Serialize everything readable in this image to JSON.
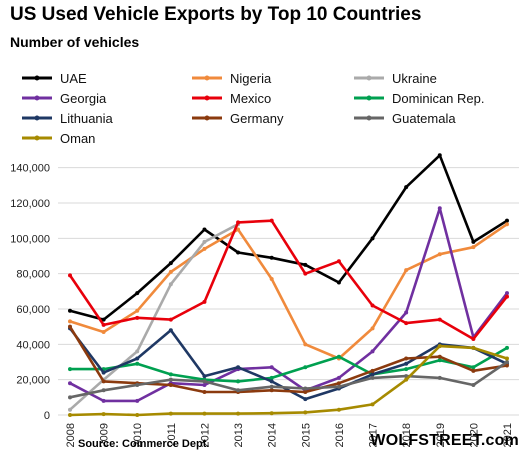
{
  "header": {
    "title": "US Used Vehicle Exports by Top 10 Countries",
    "subtitle": "Number of vehicles"
  },
  "footer": {
    "source": "Source: Commerce Dept.",
    "brand": "WOLFSTREET.com"
  },
  "chart_data": {
    "type": "line",
    "title": "US Used Vehicle Exports by Top 10 Countries",
    "ylabel": "Number of vehicles",
    "xlabel": "",
    "ylim": [
      0,
      150000
    ],
    "yticks": [
      0,
      20000,
      40000,
      60000,
      80000,
      100000,
      120000,
      140000
    ],
    "ytick_labels": [
      "0",
      "20,000",
      "40,000",
      "60,000",
      "80,000",
      "100,000",
      "120,000",
      "140,000"
    ],
    "grid": true,
    "legend_position": "top",
    "x": [
      "2008",
      "2009",
      "2010",
      "2011",
      "2012",
      "2013",
      "2014",
      "2015",
      "2016",
      "2017",
      "2018",
      "2019",
      "2020",
      "2021"
    ],
    "series": [
      {
        "name": "UAE",
        "color": "#000000",
        "values": [
          59000,
          54000,
          69000,
          86000,
          105000,
          92000,
          89000,
          85000,
          75000,
          100000,
          129000,
          147000,
          98000,
          110000
        ]
      },
      {
        "name": "Nigeria",
        "color": "#f08a3c",
        "values": [
          53000,
          47000,
          59000,
          81000,
          94000,
          105000,
          77000,
          40000,
          32000,
          49000,
          82000,
          91000,
          95000,
          108000
        ]
      },
      {
        "name": "Ukraine",
        "color": "#aaaaaa",
        "values": [
          3000,
          20000,
          36000,
          74000,
          98000,
          108000,
          null,
          null,
          null,
          null,
          null,
          null,
          null,
          null
        ]
      },
      {
        "name": "Georgia",
        "color": "#7030a0",
        "values": [
          18000,
          8000,
          8000,
          18000,
          17000,
          26000,
          27000,
          14000,
          21000,
          36000,
          58000,
          117000,
          44000,
          69000
        ]
      },
      {
        "name": "Mexico",
        "color": "#e8000b",
        "values": [
          79000,
          51000,
          55000,
          54000,
          64000,
          109000,
          110000,
          80000,
          87000,
          62000,
          52000,
          54000,
          43000,
          67000
        ]
      },
      {
        "name": "Dominican Rep.",
        "color": "#00a050",
        "values": [
          26000,
          26000,
          29000,
          23000,
          20000,
          19000,
          21000,
          27000,
          33000,
          23000,
          26000,
          31000,
          27000,
          38000
        ]
      },
      {
        "name": "Lithuania",
        "color": "#1f3864",
        "values": [
          49000,
          24000,
          32000,
          48000,
          22000,
          27000,
          19000,
          9000,
          15000,
          23000,
          29000,
          40000,
          38000,
          29000
        ]
      },
      {
        "name": "Germany",
        "color": "#8b3a0e",
        "values": [
          50000,
          19000,
          18000,
          17000,
          13000,
          13000,
          14000,
          13000,
          18000,
          25000,
          32000,
          33000,
          25000,
          28000
        ]
      },
      {
        "name": "Guatemala",
        "color": "#666666",
        "values": [
          10000,
          14000,
          17000,
          20000,
          19000,
          14000,
          16000,
          15000,
          16000,
          21000,
          22000,
          21000,
          17000,
          30000
        ]
      },
      {
        "name": "Oman",
        "color": "#a68a00",
        "values": [
          0,
          500,
          0,
          800,
          800,
          800,
          1000,
          1500,
          3000,
          6000,
          20000,
          39000,
          38000,
          32000
        ]
      }
    ]
  }
}
